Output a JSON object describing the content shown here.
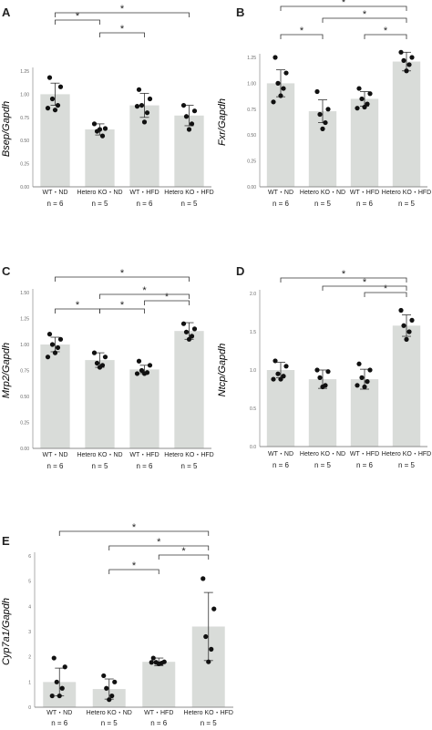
{
  "chart_data": [
    {
      "panel": "A",
      "type": "bar",
      "ylabel": "Bsep/Gapdh",
      "ylim": [
        0,
        1.25
      ],
      "yticks": [
        "0.00",
        "0.25",
        "0.50",
        "0.75",
        "1.00",
        "1.25"
      ],
      "categories": [
        "WT・ND",
        "Hetero KO・ND",
        "WT・HFD",
        "Hetero KO・HFD"
      ],
      "n_labels": [
        "n = 6",
        "n = 5",
        "n = 6",
        "n = 5"
      ],
      "values": [
        1.0,
        0.62,
        0.88,
        0.77
      ],
      "errors": [
        0.12,
        0.06,
        0.13,
        0.11
      ],
      "points": [
        [
          1.18,
          1.08,
          0.95,
          0.88,
          0.83,
          0.85
        ],
        [
          0.68,
          0.63,
          0.6,
          0.55,
          0.62
        ],
        [
          1.05,
          0.95,
          0.88,
          0.8,
          0.7,
          0.87
        ],
        [
          0.88,
          0.82,
          0.76,
          0.68,
          0.62
        ]
      ],
      "significance": [
        {
          "from": 0,
          "to": 1,
          "label": "*"
        },
        {
          "from": 1,
          "to": 2,
          "label": "*"
        },
        {
          "from": 0,
          "to": 3,
          "label": "*"
        }
      ]
    },
    {
      "panel": "B",
      "type": "bar",
      "ylabel": "Fxr/Gapdh",
      "ylim": [
        0,
        1.25
      ],
      "yticks": [
        "0.00",
        "0.25",
        "0.50",
        "0.75",
        "1.00",
        "1.25"
      ],
      "categories": [
        "WT・ND",
        "Hetero KO・ND",
        "WT・HFD",
        "Hetero KO・HFD"
      ],
      "n_labels": [
        "n = 6",
        "n = 5",
        "n = 6",
        "n = 5"
      ],
      "values": [
        1.0,
        0.73,
        0.85,
        1.21
      ],
      "errors": [
        0.13,
        0.11,
        0.07,
        0.09
      ],
      "points": [
        [
          1.25,
          1.1,
          1.0,
          0.95,
          0.88,
          0.82
        ],
        [
          0.92,
          0.75,
          0.7,
          0.62,
          0.56
        ],
        [
          0.95,
          0.9,
          0.85,
          0.8,
          0.77,
          0.76
        ],
        [
          1.3,
          1.25,
          1.22,
          1.18,
          1.12
        ]
      ],
      "significance": [
        {
          "from": 0,
          "to": 1,
          "label": "*"
        },
        {
          "from": 2,
          "to": 3,
          "label": "*"
        },
        {
          "from": 1,
          "to": 3,
          "label": "*"
        },
        {
          "from": 0,
          "to": 3,
          "label": "*"
        }
      ]
    },
    {
      "panel": "C",
      "type": "bar",
      "ylabel": "Mrp2/Gapdh",
      "ylim": [
        0,
        1.5
      ],
      "yticks": [
        "0.00",
        "0.25",
        "0.50",
        "0.75",
        "1.00",
        "1.25",
        "1.50"
      ],
      "categories": [
        "WT・ND",
        "Hetero KO・ND",
        "WT・HFD",
        "Hetero KO・HFD"
      ],
      "n_labels": [
        "n = 6",
        "n = 5",
        "n = 6",
        "n = 5"
      ],
      "values": [
        1.0,
        0.85,
        0.76,
        1.13
      ],
      "errors": [
        0.07,
        0.07,
        0.04,
        0.08
      ],
      "points": [
        [
          1.1,
          1.05,
          1.0,
          0.97,
          0.92,
          0.88
        ],
        [
          0.92,
          0.88,
          0.82,
          0.8,
          0.78
        ],
        [
          0.84,
          0.8,
          0.75,
          0.73,
          0.72,
          0.72
        ],
        [
          1.2,
          1.15,
          1.12,
          1.08,
          1.05
        ]
      ],
      "significance": [
        {
          "from": 0,
          "to": 1,
          "label": "*"
        },
        {
          "from": 1,
          "to": 2,
          "label": "*"
        },
        {
          "from": 2,
          "to": 3,
          "label": "*"
        },
        {
          "from": 1,
          "to": 3,
          "label": "*"
        },
        {
          "from": 0,
          "to": 3,
          "label": "*"
        }
      ]
    },
    {
      "panel": "D",
      "type": "bar",
      "ylabel": "Ntcp/Gapdh",
      "ylim": [
        0,
        2.0
      ],
      "yticks": [
        "0.0",
        "0.5",
        "1.0",
        "1.5",
        "2.0"
      ],
      "categories": [
        "WT・ND",
        "Hetero KO・ND",
        "WT・HFD",
        "Hetero KO・HFD"
      ],
      "n_labels": [
        "n = 6",
        "n = 5",
        "n = 6",
        "n = 5"
      ],
      "values": [
        1.0,
        0.88,
        0.88,
        1.58
      ],
      "errors": [
        0.1,
        0.12,
        0.13,
        0.14
      ],
      "points": [
        [
          1.12,
          1.05,
          0.95,
          0.92,
          0.88,
          0.88
        ],
        [
          1.0,
          0.98,
          0.9,
          0.8,
          0.78
        ],
        [
          1.08,
          1.0,
          0.9,
          0.85,
          0.78,
          0.8
        ],
        [
          1.78,
          1.65,
          1.58,
          1.5,
          1.4
        ]
      ],
      "significance": [
        {
          "from": 2,
          "to": 3,
          "label": "*"
        },
        {
          "from": 1,
          "to": 3,
          "label": "*"
        },
        {
          "from": 0,
          "to": 3,
          "label": "*"
        }
      ]
    },
    {
      "panel": "E",
      "type": "bar",
      "ylabel": "Cyp7a1/Gapdh",
      "ylim": [
        0,
        6
      ],
      "yticks": [
        "0",
        "1",
        "2",
        "3",
        "4",
        "5",
        "6"
      ],
      "categories": [
        "WT・ND",
        "Hetero KO・ND",
        "WT・HFD",
        "Hetero KO・HFD"
      ],
      "n_labels": [
        "n = 6",
        "n = 5",
        "n = 6",
        "n = 5"
      ],
      "values": [
        1.0,
        0.72,
        1.8,
        3.2
      ],
      "errors": [
        0.55,
        0.4,
        0.15,
        1.35
      ],
      "points": [
        [
          1.95,
          1.6,
          1.0,
          0.75,
          0.45,
          0.45
        ],
        [
          1.25,
          1.0,
          0.75,
          0.45,
          0.3
        ],
        [
          1.95,
          1.8,
          1.78,
          1.75,
          1.72,
          1.78
        ],
        [
          5.1,
          3.9,
          2.8,
          2.3,
          1.8
        ]
      ],
      "significance": [
        {
          "from": 1,
          "to": 2,
          "label": "*"
        },
        {
          "from": 2,
          "to": 3,
          "label": "*"
        },
        {
          "from": 1,
          "to": 3,
          "label": "*"
        },
        {
          "from": 0,
          "to": 3,
          "label": "*"
        }
      ]
    }
  ],
  "colors": {
    "bar": "#d9dcd9",
    "axis": "#8c8c8c",
    "dot": "#111111",
    "bracket": "#333333",
    "error": "#333333"
  }
}
